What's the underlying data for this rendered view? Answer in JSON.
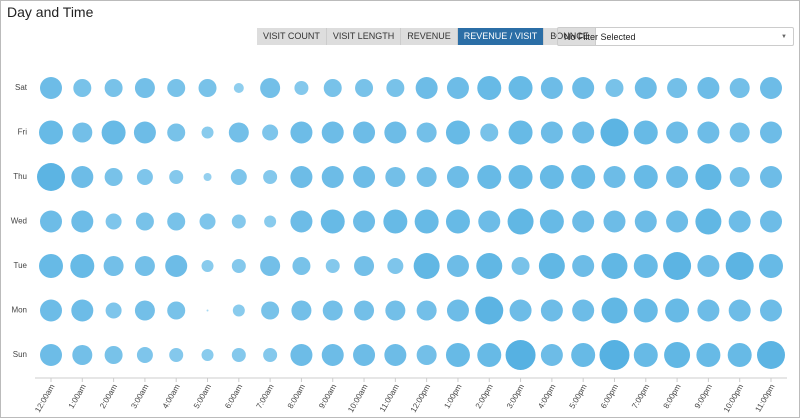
{
  "header": {
    "title": "Day and Time"
  },
  "tabs": [
    "VISIT COUNT",
    "VISIT LENGTH",
    "REVENUE",
    "REVENUE / VISIT",
    "BOUNCE"
  ],
  "active_tab": 3,
  "filter": "No Filter Selected",
  "chart_data": {
    "type": "bubble",
    "categories": [
      "12:00am",
      "1:00am",
      "2:00am",
      "3:00am",
      "4:00am",
      "5:00am",
      "6:00am",
      "7:00am",
      "8:00am",
      "9:00am",
      "10:00am",
      "11:00am",
      "12:00pm",
      "1:00pm",
      "2:00pm",
      "3:00pm",
      "4:00pm",
      "5:00pm",
      "6:00pm",
      "7:00pm",
      "8:00pm",
      "9:00pm",
      "10:00pm",
      "11:00pm"
    ],
    "color_range": [
      "#a6d9f3",
      "#56b1e2"
    ],
    "series": [
      {
        "name": "Sat",
        "values": [
          11,
          9,
          9,
          10,
          9,
          9,
          5,
          10,
          7,
          9,
          9,
          9,
          11,
          11,
          12,
          12,
          11,
          11,
          9,
          11,
          10,
          11,
          10,
          11
        ]
      },
      {
        "name": "Fri",
        "values": [
          12,
          10,
          12,
          11,
          9,
          6,
          10,
          8,
          11,
          11,
          11,
          11,
          10,
          12,
          9,
          12,
          11,
          11,
          14,
          12,
          11,
          11,
          10,
          11
        ]
      },
      {
        "name": "Thu",
        "values": [
          14,
          11,
          9,
          8,
          7,
          4,
          8,
          7,
          11,
          11,
          11,
          10,
          10,
          11,
          12,
          12,
          12,
          12,
          11,
          12,
          11,
          13,
          10,
          11
        ]
      },
      {
        "name": "Wed",
        "values": [
          11,
          11,
          8,
          9,
          9,
          8,
          7,
          6,
          11,
          12,
          11,
          12,
          12,
          12,
          11,
          13,
          12,
          11,
          11,
          11,
          11,
          13,
          11,
          11
        ]
      },
      {
        "name": "Tue",
        "values": [
          12,
          12,
          10,
          10,
          11,
          6,
          7,
          10,
          9,
          7,
          10,
          8,
          13,
          11,
          13,
          9,
          13,
          11,
          13,
          12,
          14,
          11,
          14,
          12
        ]
      },
      {
        "name": "Mon",
        "values": [
          11,
          11,
          8,
          10,
          9,
          1,
          6,
          9,
          10,
          10,
          10,
          10,
          10,
          11,
          14,
          11,
          11,
          11,
          13,
          12,
          12,
          11,
          11,
          11
        ]
      },
      {
        "name": "Sun",
        "values": [
          11,
          10,
          9,
          8,
          7,
          6,
          7,
          7,
          11,
          11,
          11,
          11,
          10,
          12,
          12,
          15,
          11,
          12,
          15,
          12,
          13,
          12,
          12,
          14
        ]
      }
    ]
  }
}
